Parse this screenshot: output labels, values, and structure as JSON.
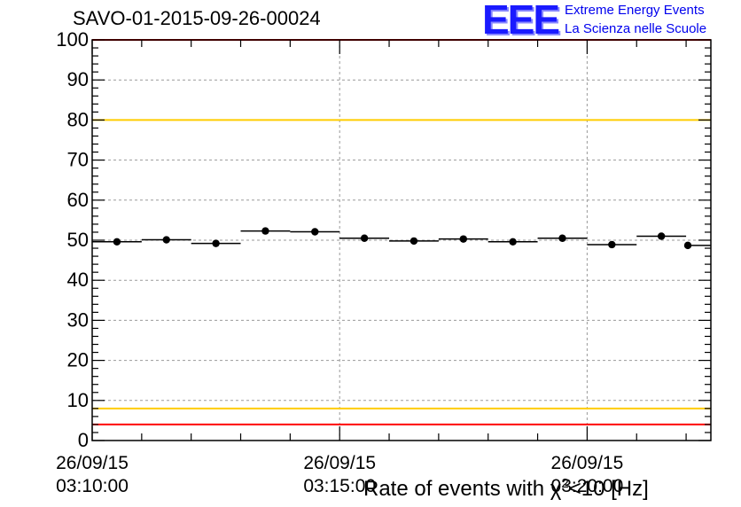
{
  "chart_data": {
    "type": "scatter",
    "title": "SAVO-01-2015-09-26-00024",
    "xlabel": "Rate of events with χ²<10 [Hz]",
    "xlabel_parts": {
      "pre": "Rate of events with χ",
      "sup": "2",
      "post": "<10 [Hz]"
    },
    "ylabel": "",
    "ylim": [
      0,
      100
    ],
    "yticks": [
      0,
      10,
      20,
      30,
      40,
      50,
      60,
      70,
      80,
      90,
      100
    ],
    "xlim": [
      0,
      12.5
    ],
    "xtick_labels": [
      {
        "x": 0,
        "date": "26/09/15",
        "time": "03:10:00"
      },
      {
        "x": 5,
        "date": "26/09/15",
        "time": "03:15:00"
      },
      {
        "x": 10,
        "date": "26/09/15",
        "time": "03:20:00"
      }
    ],
    "grid": true,
    "series": [
      {
        "name": "rate",
        "x": [
          0.5,
          1.5,
          2.5,
          3.5,
          4.5,
          5.5,
          6.5,
          7.5,
          8.5,
          9.5,
          10.5,
          11.5,
          12.5
        ],
        "values": [
          49.6,
          50.1,
          49.2,
          52.3,
          52.1,
          50.5,
          49.8,
          50.3,
          49.6,
          50.5,
          48.9,
          51.0,
          48.7
        ],
        "bin_width": 1.0
      }
    ],
    "reference_lines": [
      {
        "y": 100,
        "color": "#ff0000"
      },
      {
        "y": 80,
        "color": "#ffcc00"
      },
      {
        "y": 8,
        "color": "#ffcc00"
      },
      {
        "y": 4,
        "color": "#ff0000"
      }
    ]
  },
  "logo": {
    "mark": "EEE",
    "line1": "Extreme Energy Events",
    "line2": "La Scienza nelle Scuole"
  },
  "colors": {
    "marker": "#000000",
    "grid": "#9a9a9a",
    "logo": "#0000ee"
  }
}
